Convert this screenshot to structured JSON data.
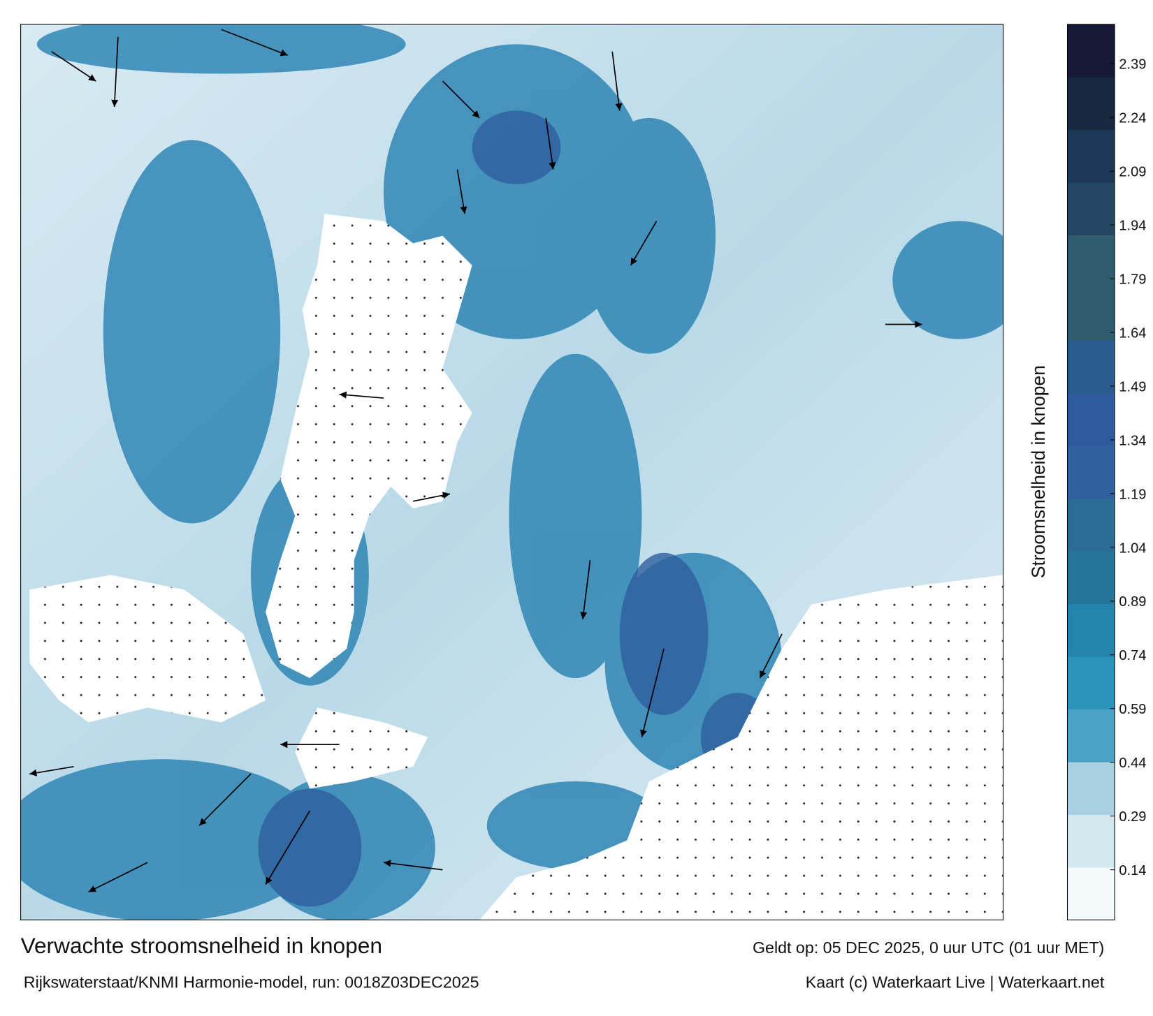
{
  "chart_data": {
    "type": "colorbar",
    "title": "Verwachte stroomsnelheid in knopen",
    "valid_time": "Geldt op: 05 DEC 2025, 0 uur UTC (01 uur MET)",
    "source": "Rijkswaterstaat/KNMI Harmonie-model, run: 0018Z03DEC2025",
    "credit": "Kaart (c) Waterkaart Live | Waterkaart.net",
    "colorbar_label": "Stroomsnelheid in knopen",
    "ylim": [
      0,
      2.5
    ],
    "yticks": [
      0.14,
      0.29,
      0.44,
      0.59,
      0.74,
      0.89,
      1.04,
      1.19,
      1.34,
      1.49,
      1.64,
      1.79,
      1.94,
      2.09,
      2.24,
      2.39
    ],
    "colors": [
      "#f4f9fb",
      "#d4e8f0",
      "#a8d0e0",
      "#4aa3c6",
      "#2c93bb",
      "#2385ab",
      "#247598",
      "#2a6c94",
      "#2e619e",
      "#2f5a9e",
      "#2b5c8f",
      "#2d5c6f",
      "#2f5c6c",
      "#254862",
      "#1c3854",
      "#17283f",
      "#161a36"
    ]
  }
}
